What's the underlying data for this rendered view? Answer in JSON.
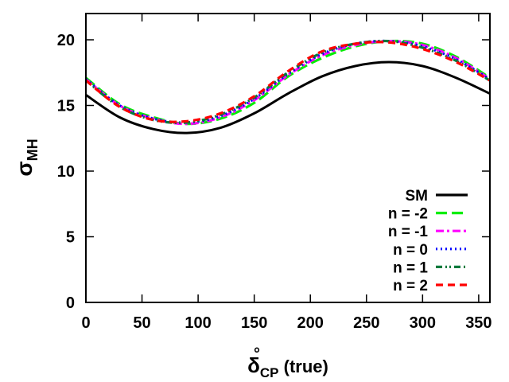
{
  "chart_data": {
    "type": "line",
    "xlabel": {
      "main": "δ",
      "sub": "CP",
      "sup": "°",
      "suffix": " (true)"
    },
    "ylabel": {
      "main": "σ",
      "sub": "MH"
    },
    "xlim": [
      0,
      360
    ],
    "ylim": [
      0,
      22
    ],
    "xticks": [
      0,
      50,
      100,
      150,
      200,
      250,
      300,
      350
    ],
    "yticks": [
      0,
      5,
      10,
      15,
      20
    ],
    "grid": false,
    "legend_position": "bottom-right",
    "x": [
      0,
      30,
      60,
      90,
      120,
      150,
      180,
      210,
      240,
      270,
      300,
      330,
      360
    ],
    "series": [
      {
        "name": "SM",
        "color": "#000000",
        "dash": "solid",
        "values": [
          15.8,
          14.1,
          13.2,
          12.9,
          13.3,
          14.4,
          15.9,
          17.2,
          18.0,
          18.3,
          18.0,
          17.1,
          15.9
        ]
      },
      {
        "name": "n = -2",
        "color": "#00ee00",
        "dash": "long-dash",
        "values": [
          17.1,
          15.1,
          14.1,
          13.6,
          14.0,
          15.2,
          17.2,
          18.6,
          19.5,
          19.9,
          19.7,
          18.7,
          17.1
        ]
      },
      {
        "name": "n = -1",
        "color": "#ff00ff",
        "dash": "dash-dot",
        "values": [
          17.0,
          15.0,
          14.0,
          13.6,
          14.1,
          15.4,
          17.3,
          18.8,
          19.6,
          19.9,
          19.6,
          18.6,
          17.0
        ]
      },
      {
        "name": "n = 0",
        "color": "#0000ff",
        "dash": "dotted",
        "values": [
          17.0,
          15.0,
          14.0,
          13.7,
          14.2,
          15.5,
          17.4,
          18.9,
          19.7,
          19.9,
          19.5,
          18.5,
          17.0
        ]
      },
      {
        "name": "n = 1",
        "color": "#007a3d",
        "dash": "dash-dot-dot",
        "values": [
          16.9,
          14.9,
          13.9,
          13.7,
          14.3,
          15.6,
          17.5,
          19.0,
          19.7,
          19.9,
          19.4,
          18.4,
          16.9
        ]
      },
      {
        "name": "n = 2",
        "color": "#ff0000",
        "dash": "short-dash",
        "values": [
          16.9,
          14.9,
          13.9,
          13.8,
          14.4,
          15.7,
          17.6,
          19.1,
          19.7,
          19.8,
          19.3,
          18.3,
          16.9
        ]
      }
    ]
  }
}
